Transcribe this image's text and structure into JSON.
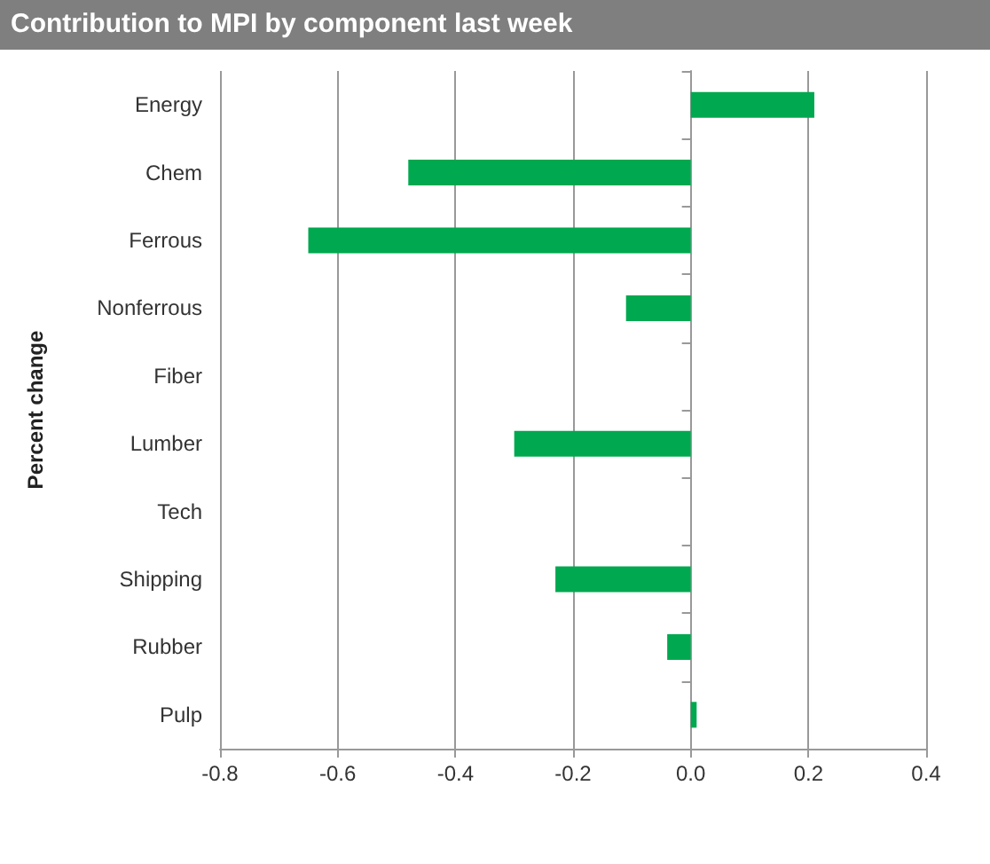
{
  "chart_data": {
    "type": "bar",
    "orientation": "horizontal",
    "title": "Contribution to MPI by component last week",
    "ylabel": "Percent change",
    "categories": [
      "Energy",
      "Chem",
      "Ferrous",
      "Nonferrous",
      "Fiber",
      "Lumber",
      "Tech",
      "Shipping",
      "Rubber",
      "Pulp"
    ],
    "values": [
      0.21,
      -0.48,
      -0.65,
      -0.11,
      0,
      -0.3,
      0,
      -0.23,
      -0.04,
      0.01
    ],
    "color": "#00a84f",
    "xlim": [
      -0.8,
      0.4
    ],
    "xticks": [
      -0.8,
      -0.6,
      -0.4,
      -0.2,
      {
        "value": 0,
        "label": "0.0"
      },
      0.2,
      0.4
    ],
    "grid": "x"
  }
}
